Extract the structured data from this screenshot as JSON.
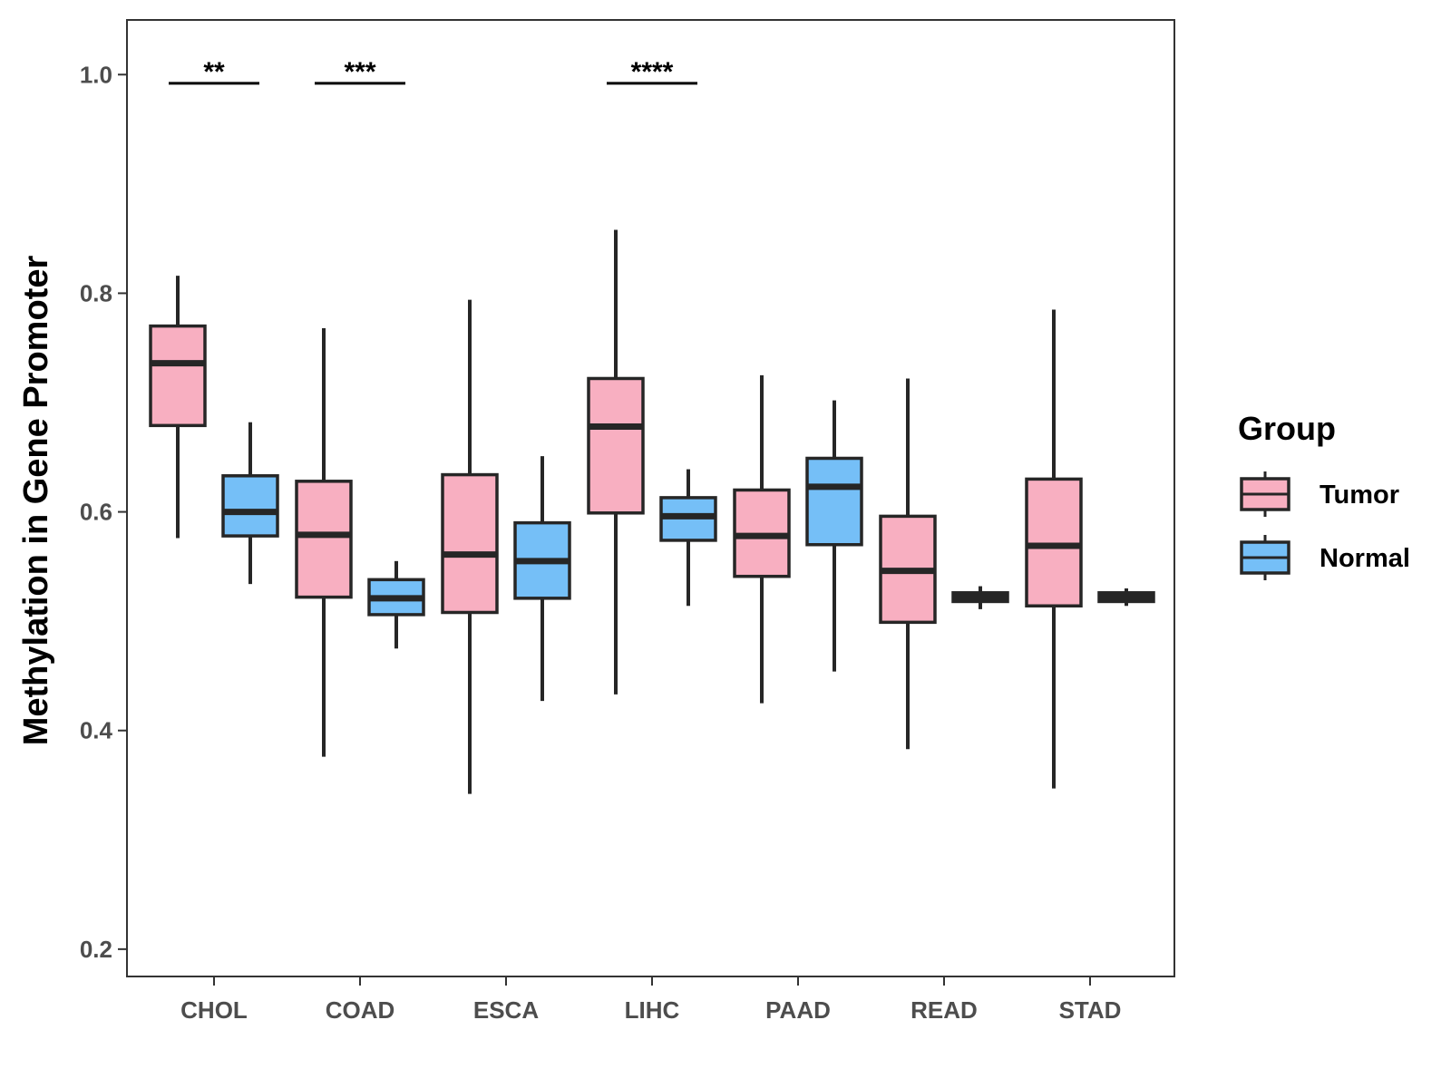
{
  "chart_data": {
    "type": "boxplot",
    "title": "",
    "xlabel": "",
    "ylabel": "Methylation in Gene Promoter",
    "ylim": [
      0.175,
      1.05
    ],
    "yticks": [
      0.2,
      0.4,
      0.6,
      0.8,
      1.0
    ],
    "ytick_labels": [
      "0.2",
      "0.4",
      "0.6",
      "0.8",
      "1.0"
    ],
    "categories": [
      "CHOL",
      "COAD",
      "ESCA",
      "LIHC",
      "PAAD",
      "READ",
      "STAD"
    ],
    "legend": {
      "title": "Group",
      "position": "right",
      "entries": [
        "Tumor",
        "Normal"
      ]
    },
    "series": [
      {
        "name": "Tumor",
        "color": "#F8AFC1",
        "boxes": [
          {
            "category": "CHOL",
            "whisker_low": 0.576,
            "q1": 0.679,
            "median": 0.736,
            "q3": 0.77,
            "whisker_high": 0.816
          },
          {
            "category": "COAD",
            "whisker_low": 0.376,
            "q1": 0.522,
            "median": 0.579,
            "q3": 0.628,
            "whisker_high": 0.768
          },
          {
            "category": "ESCA",
            "whisker_low": 0.342,
            "q1": 0.508,
            "median": 0.561,
            "q3": 0.634,
            "whisker_high": 0.794
          },
          {
            "category": "LIHC",
            "whisker_low": 0.433,
            "q1": 0.599,
            "median": 0.678,
            "q3": 0.722,
            "whisker_high": 0.858
          },
          {
            "category": "PAAD",
            "whisker_low": 0.425,
            "q1": 0.541,
            "median": 0.578,
            "q3": 0.62,
            "whisker_high": 0.725
          },
          {
            "category": "READ",
            "whisker_low": 0.383,
            "q1": 0.499,
            "median": 0.546,
            "q3": 0.596,
            "whisker_high": 0.722
          },
          {
            "category": "STAD",
            "whisker_low": 0.347,
            "q1": 0.514,
            "median": 0.569,
            "q3": 0.63,
            "whisker_high": 0.785
          }
        ]
      },
      {
        "name": "Normal",
        "color": "#75BFF7",
        "boxes": [
          {
            "category": "CHOL",
            "whisker_low": 0.534,
            "q1": 0.578,
            "median": 0.6,
            "q3": 0.633,
            "whisker_high": 0.682
          },
          {
            "category": "COAD",
            "whisker_low": 0.475,
            "q1": 0.506,
            "median": 0.521,
            "q3": 0.538,
            "whisker_high": 0.555
          },
          {
            "category": "ESCA",
            "whisker_low": 0.427,
            "q1": 0.521,
            "median": 0.555,
            "q3": 0.59,
            "whisker_high": 0.651
          },
          {
            "category": "LIHC",
            "whisker_low": 0.514,
            "q1": 0.574,
            "median": 0.596,
            "q3": 0.613,
            "whisker_high": 0.639
          },
          {
            "category": "PAAD",
            "whisker_low": 0.454,
            "q1": 0.57,
            "median": 0.623,
            "q3": 0.649,
            "whisker_high": 0.702
          },
          {
            "category": "READ",
            "whisker_low": 0.511,
            "q1": 0.518,
            "median": 0.522,
            "q3": 0.526,
            "whisker_high": 0.532
          },
          {
            "category": "STAD",
            "whisker_low": 0.514,
            "q1": 0.518,
            "median": 0.522,
            "q3": 0.526,
            "whisker_high": 0.53
          }
        ]
      }
    ],
    "significance": [
      {
        "category": "CHOL",
        "label": "**",
        "y": 0.992
      },
      {
        "category": "COAD",
        "label": "***",
        "y": 0.992
      },
      {
        "category": "LIHC",
        "label": "****",
        "y": 0.992
      }
    ],
    "grid": false
  }
}
